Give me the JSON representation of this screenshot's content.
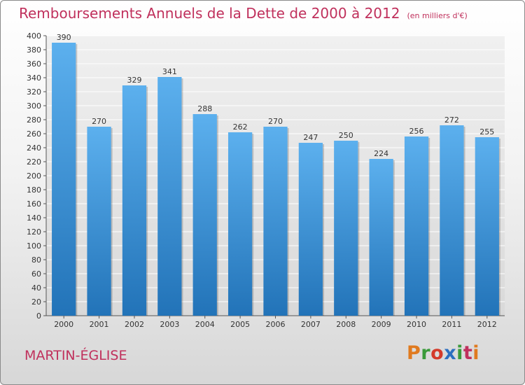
{
  "header": {
    "title": "Remboursements Annuels de la Dette de 2000 à 2012",
    "unit": "(en milliers d'€)"
  },
  "footer": {
    "commune": "MARTIN-ÉGLISE",
    "logo_text": "Proxiti",
    "logo_colors": [
      "#e07a1f",
      "#3a9a3a",
      "#d43a2a",
      "#2c6fc0",
      "#3a9a3a",
      "#c0305c",
      "#e07a1f"
    ]
  },
  "chart_data": {
    "type": "bar",
    "categories": [
      "2000",
      "2001",
      "2002",
      "2003",
      "2004",
      "2005",
      "2006",
      "2007",
      "2008",
      "2009",
      "2010",
      "2011",
      "2012"
    ],
    "values": [
      390,
      270,
      329,
      341,
      288,
      262,
      270,
      247,
      250,
      224,
      256,
      272,
      255
    ],
    "ylim": [
      0,
      400
    ],
    "ytick_step": 20,
    "grid": true,
    "bar_color": "#4a9de0"
  }
}
